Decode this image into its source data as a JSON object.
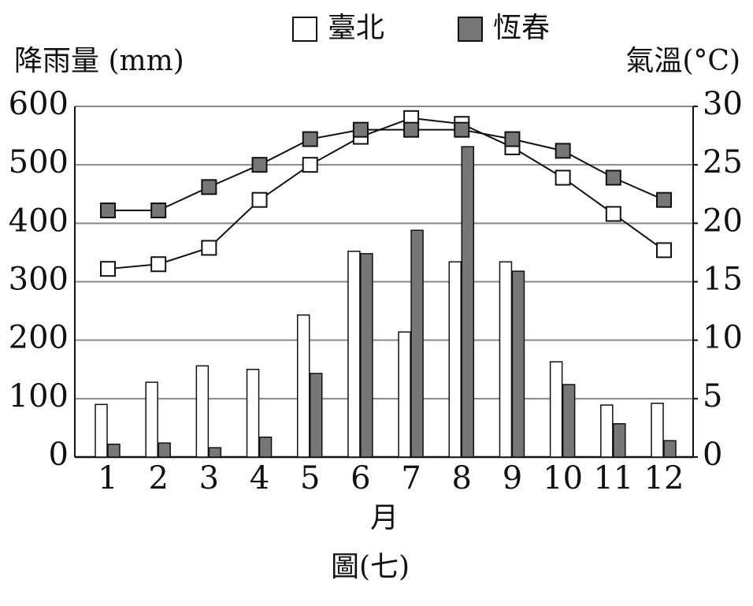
{
  "chart_data": {
    "type": "bar-line",
    "legend": "top",
    "y_label": "降雨量 (mm)",
    "y2_label": "氣溫(°C)",
    "x_label": "月",
    "caption": "圖(七)",
    "categories": [
      "1",
      "2",
      "3",
      "4",
      "5",
      "6",
      "7",
      "8",
      "9",
      "10",
      "11",
      "12"
    ],
    "ylim": [
      0,
      600
    ],
    "yticks": [
      0,
      100,
      200,
      300,
      400,
      500,
      600
    ],
    "y2lim": [
      0,
      30
    ],
    "y2ticks": [
      0,
      5,
      10,
      15,
      20,
      25,
      30
    ],
    "grid": true,
    "series": [
      {
        "name": "臺北",
        "color": "#ffffff",
        "rainfall": [
          90,
          128,
          156,
          150,
          243,
          352,
          214,
          334,
          334,
          163,
          89,
          92
        ],
        "temperature": [
          16.1,
          16.5,
          17.9,
          22.0,
          25.0,
          27.4,
          29.0,
          28.5,
          26.5,
          23.9,
          20.8,
          17.7
        ]
      },
      {
        "name": "恆春",
        "color": "#777777",
        "rainfall": [
          22,
          24,
          16,
          34,
          143,
          348,
          388,
          531,
          318,
          124,
          57,
          28
        ],
        "temperature": [
          21.1,
          21.1,
          23.1,
          25.0,
          27.2,
          28.0,
          28.0,
          28.0,
          27.2,
          26.2,
          23.9,
          22.0
        ]
      }
    ]
  }
}
